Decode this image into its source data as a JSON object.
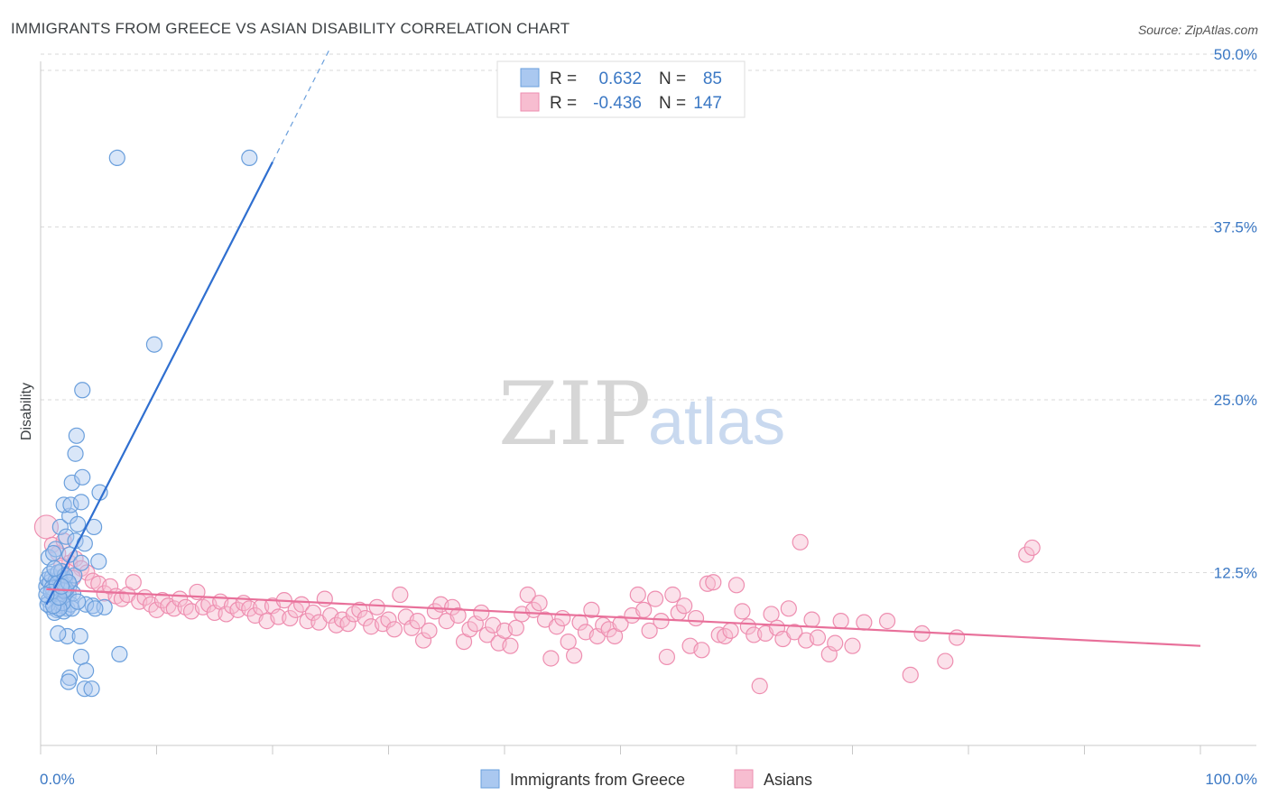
{
  "title": "IMMIGRANTS FROM GREECE VS ASIAN DISABILITY CORRELATION CHART",
  "source": "Source: ZipAtlas.com",
  "watermark": {
    "part1": "ZIP",
    "part2": "atlas"
  },
  "legend": {
    "r_label": "R =",
    "n_label": "N =",
    "rows": [
      {
        "r": "0.632",
        "n": "85",
        "color": "#aac8f0",
        "stroke": "#6a9fdc"
      },
      {
        "r": "-0.436",
        "n": "147",
        "color": "#f7bdd0",
        "stroke": "#ee8eb0"
      }
    ]
  },
  "bottom_legend": [
    {
      "label": "Immigrants from Greece",
      "color": "#aac8f0",
      "stroke": "#6a9fdc"
    },
    {
      "label": "Asians",
      "color": "#f7bdd0",
      "stroke": "#ee8eb0"
    }
  ],
  "chart_data": {
    "type": "scatter",
    "title": "IMMIGRANTS FROM GREECE VS ASIAN DISABILITY CORRELATION CHART",
    "xlabel": "",
    "ylabel": "Disability",
    "xlim": [
      0,
      100
    ],
    "ylim": [
      0,
      52
    ],
    "x_tick_labels": [
      "0.0%",
      "100.0%"
    ],
    "y_ticks": [
      12.5,
      25.0,
      37.5,
      50.0
    ],
    "y_tick_labels": [
      "12.5%",
      "25.0%",
      "37.5%",
      "50.0%"
    ],
    "series": [
      {
        "name": "Immigrants from Greece",
        "color": "#6a9fdc",
        "trend": {
          "x0": 0.5,
          "y0": 10.2,
          "x1": 20.0,
          "y1": 42.2,
          "dash_to_x": 25.0,
          "dash_to_y": 50.5
        },
        "points": [
          [
            0.5,
            11.5
          ],
          [
            0.6,
            12.0
          ],
          [
            0.7,
            10.5
          ],
          [
            0.8,
            11.8
          ],
          [
            0.9,
            10.0
          ],
          [
            1.0,
            12.2
          ],
          [
            1.1,
            11.0
          ],
          [
            1.2,
            10.8
          ],
          [
            1.3,
            11.9
          ],
          [
            1.4,
            9.8
          ],
          [
            1.5,
            10.6
          ],
          [
            1.6,
            12.1
          ],
          [
            1.7,
            11.3
          ],
          [
            1.8,
            10.1
          ],
          [
            1.9,
            11.7
          ],
          [
            2.0,
            10.4
          ],
          [
            2.1,
            12.0
          ],
          [
            2.2,
            11.1
          ],
          [
            2.3,
            9.9
          ],
          [
            2.4,
            10.9
          ],
          [
            2.5,
            11.6
          ],
          [
            0.8,
            12.4
          ],
          [
            1.2,
            9.6
          ],
          [
            0.6,
            10.2
          ],
          [
            1.0,
            11.4
          ],
          [
            1.5,
            12.5
          ],
          [
            2.0,
            9.7
          ],
          [
            1.8,
            12.6
          ],
          [
            2.6,
            10.2
          ],
          [
            2.8,
            11.0
          ],
          [
            0.7,
            13.6
          ],
          [
            1.3,
            14.2
          ],
          [
            1.7,
            15.8
          ],
          [
            2.2,
            15.1
          ],
          [
            2.5,
            16.6
          ],
          [
            2.0,
            17.4
          ],
          [
            2.7,
            19.0
          ],
          [
            3.2,
            16.0
          ],
          [
            3.0,
            14.8
          ],
          [
            3.8,
            14.6
          ],
          [
            2.5,
            13.8
          ],
          [
            2.9,
            12.3
          ],
          [
            3.5,
            13.2
          ],
          [
            2.3,
            7.9
          ],
          [
            1.5,
            8.1
          ],
          [
            3.4,
            7.9
          ],
          [
            3.0,
            21.1
          ],
          [
            3.1,
            22.4
          ],
          [
            2.6,
            17.4
          ],
          [
            2.7,
            9.9
          ],
          [
            1.9,
            10.3
          ],
          [
            1.1,
            13.9
          ],
          [
            3.6,
            19.4
          ],
          [
            3.5,
            17.6
          ],
          [
            5.1,
            18.3
          ],
          [
            5.0,
            13.3
          ],
          [
            4.6,
            15.8
          ],
          [
            3.5,
            6.4
          ],
          [
            3.9,
            5.4
          ],
          [
            2.5,
            4.9
          ],
          [
            2.4,
            4.6
          ],
          [
            3.8,
            4.1
          ],
          [
            4.4,
            4.1
          ],
          [
            6.8,
            6.6
          ],
          [
            4.5,
            10.1
          ],
          [
            5.5,
            10.0
          ],
          [
            3.9,
            10.2
          ],
          [
            4.7,
            9.9
          ],
          [
            3.2,
            10.4
          ],
          [
            2.2,
            11.3
          ],
          [
            1.6,
            9.9
          ],
          [
            2.0,
            11.2
          ],
          [
            6.6,
            42.5
          ],
          [
            18.0,
            42.5
          ],
          [
            9.8,
            29.0
          ],
          [
            3.6,
            25.7
          ],
          [
            1.1,
            10.1
          ],
          [
            1.4,
            11.7
          ],
          [
            2.1,
            12.3
          ],
          [
            0.9,
            11.1
          ],
          [
            1.2,
            12.8
          ],
          [
            1.6,
            10.7
          ],
          [
            2.4,
            11.8
          ],
          [
            1.8,
            11.5
          ],
          [
            0.5,
            10.9
          ]
        ]
      },
      {
        "name": "Asians",
        "color": "#ee8eb0",
        "trend": {
          "x0": 0.5,
          "y0": 11.3,
          "x1": 100.0,
          "y1": 7.2
        },
        "points": [
          [
            0.5,
            15.8
          ],
          [
            1.0,
            14.5
          ],
          [
            1.5,
            13.9
          ],
          [
            2.0,
            14.8
          ],
          [
            2.5,
            13.2
          ],
          [
            3.0,
            13.5
          ],
          [
            3.5,
            12.8
          ],
          [
            4.0,
            12.5
          ],
          [
            4.5,
            11.9
          ],
          [
            5.0,
            11.7
          ],
          [
            5.5,
            11.0
          ],
          [
            6.0,
            11.5
          ],
          [
            6.5,
            10.8
          ],
          [
            7.0,
            10.6
          ],
          [
            7.5,
            10.9
          ],
          [
            8.0,
            11.8
          ],
          [
            8.5,
            10.4
          ],
          [
            9.0,
            10.7
          ],
          [
            9.5,
            10.2
          ],
          [
            10.0,
            9.8
          ],
          [
            10.5,
            10.5
          ],
          [
            11.0,
            10.1
          ],
          [
            11.5,
            9.9
          ],
          [
            12.0,
            10.6
          ],
          [
            12.5,
            10.0
          ],
          [
            13.0,
            9.7
          ],
          [
            13.5,
            11.1
          ],
          [
            14.0,
            10.0
          ],
          [
            14.5,
            10.2
          ],
          [
            15.0,
            9.6
          ],
          [
            15.5,
            10.4
          ],
          [
            16.0,
            9.5
          ],
          [
            16.5,
            10.1
          ],
          [
            17.0,
            9.8
          ],
          [
            17.5,
            10.3
          ],
          [
            18.0,
            9.9
          ],
          [
            18.5,
            9.4
          ],
          [
            19.0,
            10.0
          ],
          [
            19.5,
            9.0
          ],
          [
            20.0,
            10.1
          ],
          [
            20.5,
            9.3
          ],
          [
            21.0,
            10.5
          ],
          [
            21.5,
            9.2
          ],
          [
            22.0,
            9.8
          ],
          [
            22.5,
            10.2
          ],
          [
            23.0,
            9.0
          ],
          [
            23.5,
            9.6
          ],
          [
            24.0,
            8.9
          ],
          [
            24.5,
            10.6
          ],
          [
            25.0,
            9.4
          ],
          [
            25.5,
            8.7
          ],
          [
            26.0,
            9.1
          ],
          [
            26.5,
            8.8
          ],
          [
            27.0,
            9.5
          ],
          [
            27.5,
            9.8
          ],
          [
            28.0,
            9.2
          ],
          [
            28.5,
            8.6
          ],
          [
            29.0,
            10.0
          ],
          [
            29.5,
            8.8
          ],
          [
            30.0,
            9.1
          ],
          [
            30.5,
            8.4
          ],
          [
            31.0,
            10.9
          ],
          [
            31.5,
            9.3
          ],
          [
            32.0,
            8.5
          ],
          [
            32.5,
            9.0
          ],
          [
            33.0,
            7.6
          ],
          [
            33.5,
            8.3
          ],
          [
            34.0,
            9.7
          ],
          [
            34.5,
            10.2
          ],
          [
            35.0,
            9.0
          ],
          [
            35.5,
            10.0
          ],
          [
            36.0,
            9.4
          ],
          [
            36.5,
            7.5
          ],
          [
            37.0,
            8.4
          ],
          [
            37.5,
            8.8
          ],
          [
            38.0,
            9.6
          ],
          [
            38.5,
            8.0
          ],
          [
            39.0,
            8.7
          ],
          [
            39.5,
            7.4
          ],
          [
            40.0,
            8.3
          ],
          [
            40.5,
            7.2
          ],
          [
            41.0,
            8.5
          ],
          [
            41.5,
            9.5
          ],
          [
            42.0,
            10.9
          ],
          [
            42.5,
            9.8
          ],
          [
            43.0,
            10.3
          ],
          [
            43.5,
            9.1
          ],
          [
            44.0,
            6.3
          ],
          [
            44.5,
            8.6
          ],
          [
            45.0,
            9.2
          ],
          [
            45.5,
            7.5
          ],
          [
            46.0,
            6.5
          ],
          [
            46.5,
            8.9
          ],
          [
            47.0,
            8.2
          ],
          [
            47.5,
            9.8
          ],
          [
            48.0,
            7.9
          ],
          [
            48.5,
            8.7
          ],
          [
            49.0,
            8.4
          ],
          [
            49.5,
            7.9
          ],
          [
            50.0,
            8.8
          ],
          [
            51.0,
            9.4
          ],
          [
            51.5,
            10.9
          ],
          [
            52.0,
            9.8
          ],
          [
            52.5,
            8.3
          ],
          [
            53.0,
            10.6
          ],
          [
            53.5,
            9.0
          ],
          [
            54.0,
            6.4
          ],
          [
            54.5,
            10.9
          ],
          [
            55.0,
            9.6
          ],
          [
            55.5,
            10.1
          ],
          [
            56.0,
            7.2
          ],
          [
            56.5,
            9.2
          ],
          [
            57.0,
            6.9
          ],
          [
            57.5,
            11.7
          ],
          [
            58.0,
            11.8
          ],
          [
            58.5,
            8.0
          ],
          [
            59.0,
            7.9
          ],
          [
            59.5,
            8.3
          ],
          [
            60.0,
            11.6
          ],
          [
            60.5,
            9.7
          ],
          [
            61.0,
            8.6
          ],
          [
            61.5,
            8.0
          ],
          [
            62.0,
            4.3
          ],
          [
            62.5,
            8.1
          ],
          [
            63.0,
            9.5
          ],
          [
            63.5,
            8.5
          ],
          [
            64.0,
            7.7
          ],
          [
            64.5,
            9.9
          ],
          [
            65.0,
            8.2
          ],
          [
            65.5,
            14.7
          ],
          [
            66.0,
            7.6
          ],
          [
            66.5,
            9.1
          ],
          [
            67.0,
            7.8
          ],
          [
            68.0,
            6.6
          ],
          [
            68.5,
            7.4
          ],
          [
            69.0,
            9.0
          ],
          [
            70.0,
            7.2
          ],
          [
            71.0,
            8.9
          ],
          [
            73.0,
            9.0
          ],
          [
            75.0,
            5.1
          ],
          [
            76.0,
            8.1
          ],
          [
            78.0,
            6.1
          ],
          [
            79.0,
            7.8
          ],
          [
            85.0,
            13.8
          ],
          [
            85.5,
            14.3
          ],
          [
            1.8,
            13.0
          ],
          [
            2.8,
            12.1
          ]
        ]
      }
    ]
  }
}
